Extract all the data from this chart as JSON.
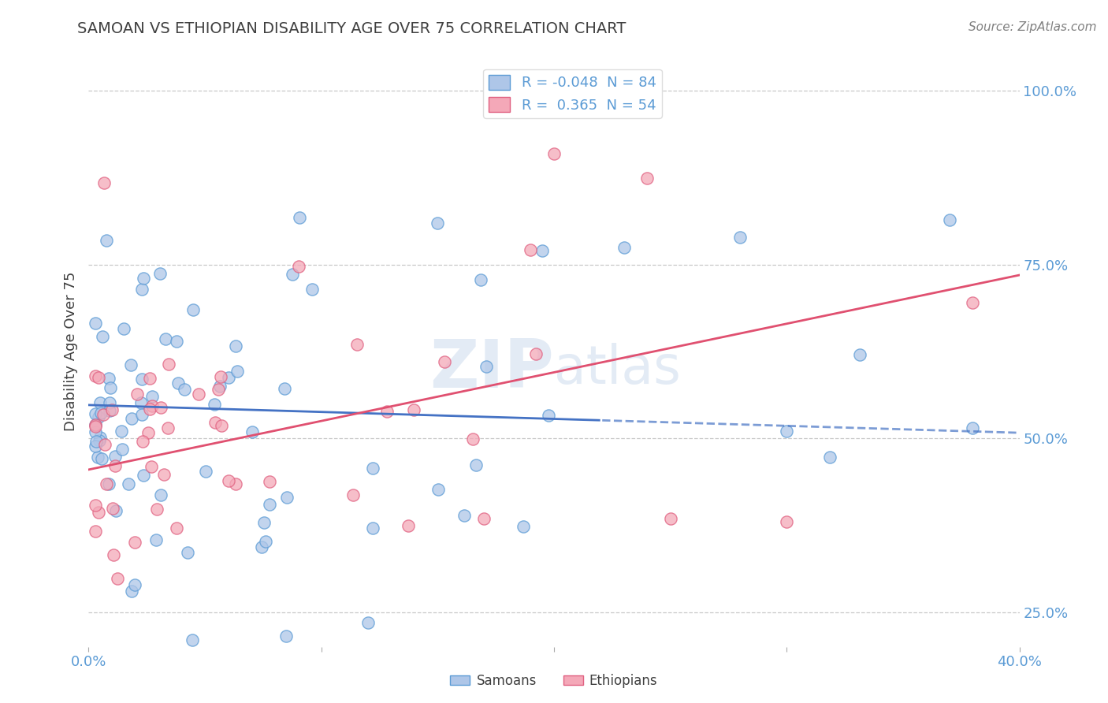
{
  "title": "SAMOAN VS ETHIOPIAN DISABILITY AGE OVER 75 CORRELATION CHART",
  "source": "Source: ZipAtlas.com",
  "ylabel": "Disability Age Over 75",
  "xlim": [
    0.0,
    0.4
  ],
  "ylim": [
    0.2,
    1.05
  ],
  "x_ticks": [
    0.0,
    0.1,
    0.2,
    0.3,
    0.4
  ],
  "y_ticks": [
    0.25,
    0.5,
    0.75,
    1.0
  ],
  "samoan_R": -0.048,
  "samoan_N": 84,
  "ethiopian_R": 0.365,
  "ethiopian_N": 54,
  "samoan_color": "#aec6e8",
  "ethiopian_color": "#f4a8b8",
  "samoan_edge_color": "#5b9bd5",
  "ethiopian_edge_color": "#e06080",
  "samoan_line_color": "#4472c4",
  "ethiopian_line_color": "#e05070",
  "background_color": "#ffffff",
  "grid_color": "#c8c8c8",
  "title_color": "#404040",
  "axis_label_color": "#404040",
  "tick_color": "#5b9bd5",
  "source_color": "#808080",
  "watermark": "ZIPatlas",
  "watermark_color": "#c8d8ec"
}
